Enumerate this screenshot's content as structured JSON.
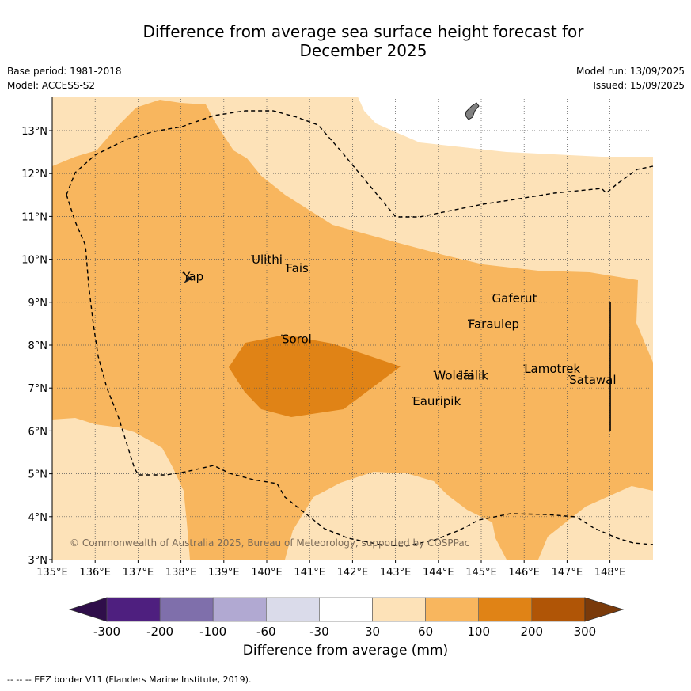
{
  "title_line1": "Difference from average sea surface height forecast for",
  "title_line2": "December 2025",
  "meta_left": [
    "Base period: 1981-2018",
    "Model: ACCESS-S2"
  ],
  "meta_right": [
    "Model run: 13/09/2025",
    "Issued: 15/09/2025"
  ],
  "credit": "© Commonwealth of Australia 2025, Bureau of Meteorology, supported by COSPPac",
  "footer": "--  --  -- EEZ border V11 (Flanders Marine Institute, 2019).",
  "lon_ticks": [
    "135°E",
    "136°E",
    "137°E",
    "138°E",
    "139°E",
    "140°E",
    "141°E",
    "142°E",
    "143°E",
    "144°E",
    "145°E",
    "146°E",
    "147°E",
    "148°E"
  ],
  "lat_ticks": [
    "3°N",
    "4°N",
    "5°N",
    "6°N",
    "7°N",
    "8°N",
    "9°N",
    "10°N",
    "11°N",
    "12°N",
    "13°N"
  ],
  "places": [
    {
      "name": "Yap",
      "lon": 138.05,
      "lat": 9.5
    },
    {
      "name": "Ulithi",
      "lon": 139.65,
      "lat": 9.9
    },
    {
      "name": "Fais",
      "lon": 140.45,
      "lat": 9.7
    },
    {
      "name": "Sorol",
      "lon": 140.35,
      "lat": 8.05
    },
    {
      "name": "Gaferut",
      "lon": 145.25,
      "lat": 9.0
    },
    {
      "name": "Faraulep",
      "lon": 144.7,
      "lat": 8.4
    },
    {
      "name": "Lamotrek",
      "lon": 146.0,
      "lat": 7.35
    },
    {
      "name": "Woleai",
      "lon": 143.9,
      "lat": 7.2
    },
    {
      "name": "Ifalik",
      "lon": 144.5,
      "lat": 7.2
    },
    {
      "name": "Satawal",
      "lon": 147.05,
      "lat": 7.1
    },
    {
      "name": "Eauripik",
      "lon": 143.4,
      "lat": 6.6
    }
  ],
  "colorbar": {
    "label": "Difference from average (mm)",
    "ticks": [
      "-300",
      "-200",
      "-100",
      "-60",
      "-30",
      "30",
      "60",
      "100",
      "200",
      "300"
    ],
    "colors": [
      "#2f0e4a",
      "#4e1f7f",
      "#7f6fab",
      "#b1a9d2",
      "#dadbea",
      "#ffffff",
      "#fde2b8",
      "#f8b65e",
      "#e08316",
      "#b05506",
      "#7a3a0a"
    ]
  },
  "levels": {
    "30_60": "#fde2b8",
    "60_100": "#f8b65e",
    "100_200": "#e08316"
  }
}
